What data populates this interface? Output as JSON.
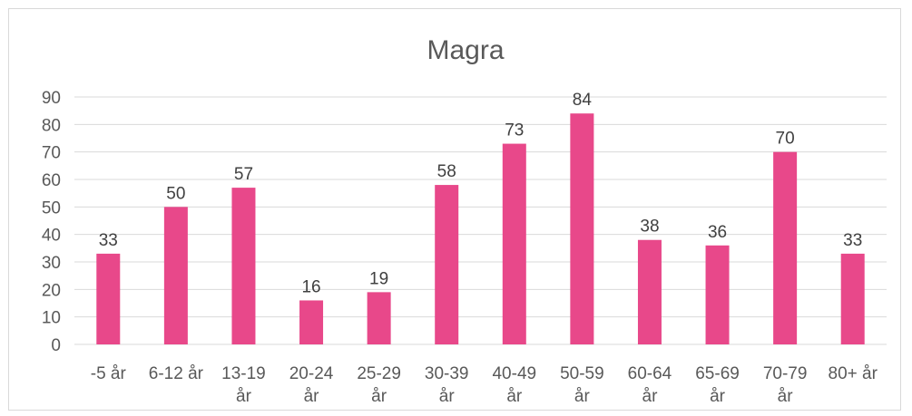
{
  "chart_data": {
    "type": "bar",
    "title": "Magra",
    "categories": [
      "-5 år",
      "6-12 år",
      "13-19 år",
      "20-24 år",
      "25-29 år",
      "30-39 år",
      "40-49 år",
      "50-59 år",
      "60-64 år",
      "65-69 år",
      "70-79 år",
      "80+ år"
    ],
    "values": [
      33,
      50,
      57,
      16,
      19,
      58,
      73,
      84,
      38,
      36,
      70,
      33
    ],
    "ylim": [
      0,
      90
    ],
    "yticks": [
      0,
      10,
      20,
      30,
      40,
      50,
      60,
      70,
      80,
      90
    ],
    "grid": true,
    "data_labels": true,
    "bar_color": "#e8488a",
    "gridline_color": "#d9d9d9"
  }
}
